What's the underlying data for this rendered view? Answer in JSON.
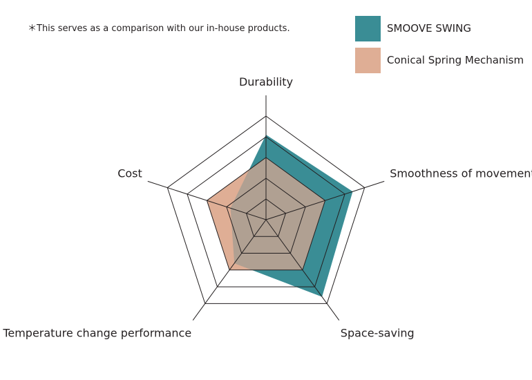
{
  "note": "＊This serves as a comparison with our in-house products.",
  "colors": {
    "smoove_swing": "#3a8d95",
    "conical_spring": "#dfae95",
    "overlap": "#b0a092",
    "grid": "#231f20"
  },
  "chart_data": {
    "type": "radar",
    "categories": [
      "Durability",
      "Smoothness of movement",
      "Space-saving",
      "Temperature change performance",
      "Cost"
    ],
    "rmax": 5,
    "rings": 5,
    "series": [
      {
        "name": "SMOOVE SWING",
        "values": [
          4.1,
          4.4,
          4.6,
          2.6,
          1.8
        ]
      },
      {
        "name": "Conical Spring Mechanism",
        "values": [
          3.0,
          3.0,
          3.0,
          3.0,
          3.0
        ]
      }
    ]
  }
}
